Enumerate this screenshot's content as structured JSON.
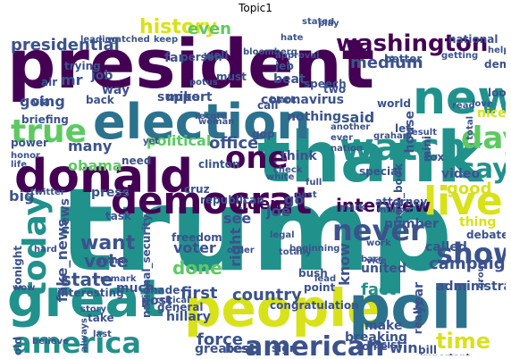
{
  "title": "Topic1",
  "palette": {
    "dark_purple": "#440154",
    "indigo": "#3b528b",
    "teal": "#21918c",
    "green": "#5ec962",
    "yellow": "#d8e219",
    "blue": "#2c728e"
  },
  "words": [
    "president",
    "trump",
    "thank",
    "great",
    "people",
    "poll",
    "election",
    "donald",
    "new",
    "democrat",
    "watch",
    "live",
    "america",
    "show",
    "american",
    "today",
    "day",
    "true",
    "washington",
    "presidential",
    "history",
    "interview",
    "never",
    "time",
    "say",
    "one",
    "biden",
    "fact",
    "want",
    "vote",
    "done",
    "state",
    "fake_news",
    "first",
    "country",
    "medium",
    "office",
    "watch",
    "force",
    "going",
    "said",
    "voter",
    "mike",
    "good",
    "many",
    "obama",
    "political",
    "campaign",
    "even",
    "mr",
    "support",
    "job",
    "way",
    "back",
    "coronavirus",
    "nothing",
    "nice",
    "briefing",
    "power",
    "joe",
    "go",
    "know",
    "big",
    "united",
    "hillary",
    "much",
    "news",
    "press",
    "called",
    "number",
    "year",
    "administration",
    "breaking",
    "make",
    "win",
    "sign",
    "best",
    "greatest",
    "come",
    "point",
    "see",
    "right",
    "post",
    "freedom",
    "republican",
    "clinton",
    "cruz",
    "think",
    "task",
    "really",
    "video",
    "look",
    "dem",
    "mini",
    "house",
    "fox",
    "thing",
    "debate",
    "national",
    "help",
    "leading",
    "watched",
    "keep",
    "far",
    "well",
    "bloomberg",
    "approval",
    "better",
    "getting",
    "person",
    "air",
    "trying",
    "must",
    "beat",
    "jeb",
    "speech",
    "world",
    "dem",
    "via",
    "word",
    "call",
    "black",
    "still",
    "rating",
    "nation",
    "graham",
    "result",
    "honor",
    "need",
    "gop",
    "life",
    "twitter",
    "hold",
    "believe",
    "bill",
    "important",
    "story",
    "always",
    "take",
    "last",
    "wow",
    "interesting",
    "new_book",
    "special",
    "attorney",
    "million",
    "national_security",
    "general",
    "critical",
    "congratulation",
    "totally",
    "bush",
    "lead",
    "racist",
    "tonight",
    "hard",
    "team",
    "remark",
    "made",
    "legal",
    "work",
    "order",
    "beginning",
    "vice",
    "two",
    "ever",
    "let",
    "nice",
    "barr",
    "check",
    "full",
    "full",
    "past",
    "white",
    "stated",
    "play",
    "potus",
    "hate",
    "yet",
    "group",
    "mark",
    "woman",
    "record",
    "another",
    "total",
    "read",
    "love"
  ]
}
